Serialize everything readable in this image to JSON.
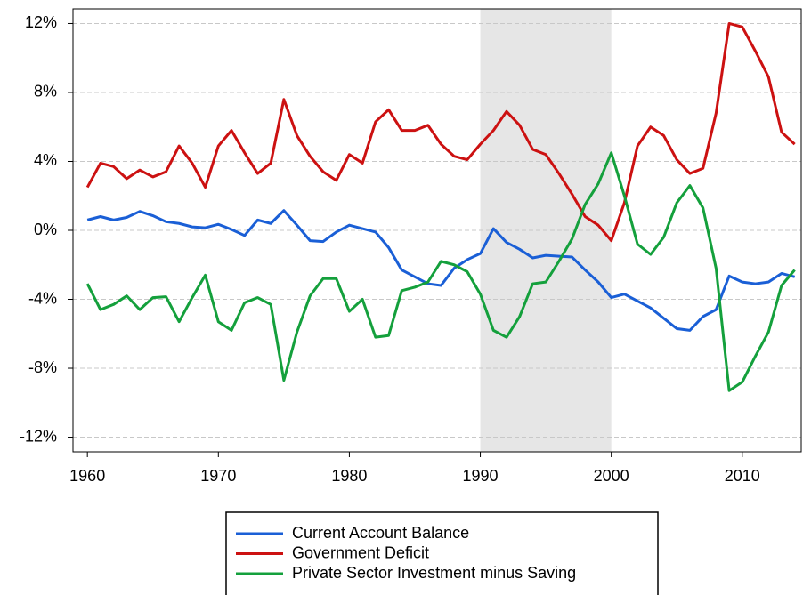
{
  "chart_data": {
    "type": "line",
    "x": [
      1960,
      1961,
      1962,
      1963,
      1964,
      1965,
      1966,
      1967,
      1968,
      1969,
      1970,
      1971,
      1972,
      1973,
      1974,
      1975,
      1976,
      1977,
      1978,
      1979,
      1980,
      1981,
      1982,
      1983,
      1984,
      1985,
      1986,
      1987,
      1988,
      1989,
      1990,
      1991,
      1992,
      1993,
      1994,
      1995,
      1996,
      1997,
      1998,
      1999,
      2000,
      2001,
      2002,
      2003,
      2004,
      2005,
      2006,
      2007,
      2008,
      2009,
      2010,
      2011,
      2012,
      2013,
      2014
    ],
    "series": [
      {
        "name": "Current Account Balance",
        "color": "#1a5fd6",
        "values": [
          0.6,
          0.8,
          0.6,
          0.75,
          1.1,
          0.85,
          0.5,
          0.4,
          0.2,
          0.15,
          0.35,
          0.05,
          -0.3,
          0.6,
          0.4,
          1.15,
          0.3,
          -0.6,
          -0.65,
          -0.1,
          0.3,
          0.1,
          -0.1,
          -1.0,
          -2.3,
          -2.7,
          -3.1,
          -3.2,
          -2.2,
          -1.7,
          -1.35,
          0.1,
          -0.7,
          -1.1,
          -1.6,
          -1.45,
          -1.5,
          -1.55,
          -2.3,
          -3.0,
          -3.9,
          -3.7,
          -4.1,
          -4.5,
          -5.1,
          -5.7,
          -5.8,
          -5.0,
          -4.6,
          -2.65,
          -3.0,
          -3.1,
          -3.0,
          -2.5,
          -2.7
        ]
      },
      {
        "name": "Government Deficit",
        "color": "#cc1111",
        "values": [
          2.5,
          3.9,
          3.7,
          3.0,
          3.5,
          3.1,
          3.4,
          4.9,
          3.9,
          2.5,
          4.9,
          5.8,
          4.5,
          3.3,
          3.9,
          7.6,
          5.5,
          4.3,
          3.4,
          2.9,
          4.4,
          3.9,
          6.3,
          7.0,
          5.8,
          5.8,
          6.1,
          5.0,
          4.3,
          4.1,
          5.0,
          5.8,
          6.9,
          6.1,
          4.7,
          4.4,
          3.3,
          2.1,
          0.8,
          0.3,
          -0.6,
          1.6,
          4.9,
          6.0,
          5.5,
          4.1,
          3.3,
          3.6,
          6.8,
          12.0,
          11.8,
          10.4,
          8.9,
          5.7,
          5.0
        ]
      },
      {
        "name": "Private Sector Investment minus Saving",
        "color": "#14a03c",
        "values": [
          -3.1,
          -4.6,
          -4.3,
          -3.8,
          -4.6,
          -3.9,
          -3.85,
          -5.3,
          -3.9,
          -2.6,
          -5.3,
          -5.8,
          -4.2,
          -3.9,
          -4.3,
          -8.7,
          -5.9,
          -3.8,
          -2.8,
          -2.8,
          -4.7,
          -4.0,
          -6.2,
          -6.1,
          -3.5,
          -3.3,
          -3.0,
          -1.8,
          -2.0,
          -2.4,
          -3.7,
          -5.8,
          -6.2,
          -5.0,
          -3.1,
          -3.0,
          -1.8,
          -0.5,
          1.5,
          2.7,
          4.5,
          2.0,
          -0.8,
          -1.4,
          -0.4,
          1.6,
          2.6,
          1.3,
          -2.2,
          -9.3,
          -8.8,
          -7.3,
          -5.9,
          -3.2,
          -2.3
        ]
      }
    ],
    "xlim": [
      1958.9,
      2014.5
    ],
    "xticks": [
      1960,
      1970,
      1980,
      1990,
      2000,
      2010
    ],
    "ylim": [
      -12.85,
      12.85
    ],
    "yticks": [
      {
        "value": -12,
        "label": "-12%"
      },
      {
        "value": -8,
        "label": "-8%"
      },
      {
        "value": -4,
        "label": "-4%"
      },
      {
        "value": 0,
        "label": "0%"
      },
      {
        "value": 4,
        "label": "4%"
      },
      {
        "value": 8,
        "label": "8%"
      },
      {
        "value": 12,
        "label": "12%"
      }
    ],
    "shade": [
      1990,
      2000
    ],
    "shade_color": "#e6e6e6",
    "grid": true,
    "legend": "bottom"
  }
}
